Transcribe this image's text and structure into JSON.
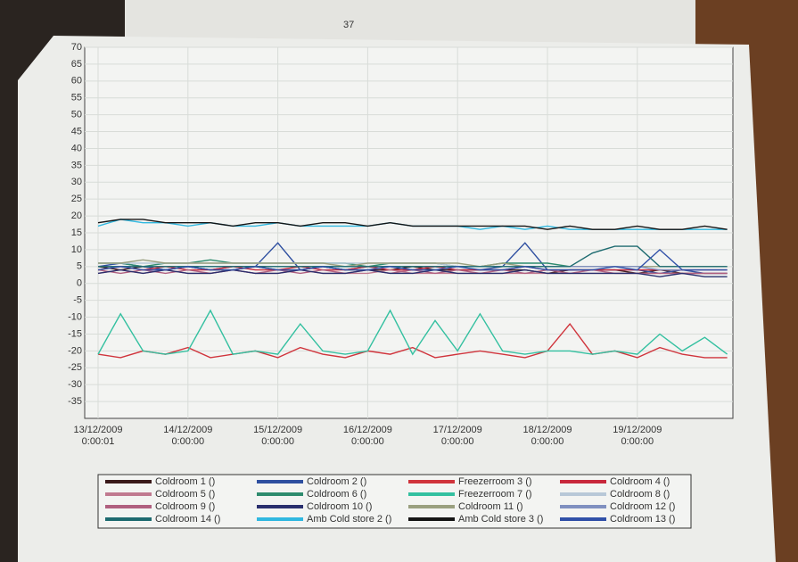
{
  "chart_data": {
    "type": "line",
    "annotation": "37",
    "categories": [
      "13/12/2009 0:00:01",
      null,
      null,
      null,
      "14/12/2009 0:00:00",
      null,
      null,
      null,
      "15/12/2009 0:00:00",
      null,
      null,
      null,
      "16/12/2009 0:00:00",
      null,
      null,
      null,
      "17/12/2009 0:00:00",
      null,
      null,
      null,
      "18/12/2009 0:00:00",
      null,
      null,
      null,
      "19/12/2009 0:00:00",
      null,
      null,
      null,
      null
    ],
    "ylim": [
      -40,
      70
    ],
    "yticks": [
      -35,
      -30,
      -25,
      -20,
      -15,
      -10,
      -5,
      0,
      5,
      10,
      15,
      20,
      25,
      30,
      35,
      40,
      45,
      50,
      55,
      60,
      65,
      70
    ],
    "grid": true,
    "series": [
      {
        "name": "Coldroom 1 ()",
        "color": "#3a1a1a",
        "values": [
          5,
          4,
          5,
          4,
          5,
          4,
          4,
          5,
          4,
          4,
          5,
          4,
          4,
          4,
          5,
          4,
          4,
          4,
          4,
          4,
          3,
          4,
          4,
          4,
          3,
          4,
          3,
          3,
          3
        ]
      },
      {
        "name": "Coldroom 2 ()",
        "color": "#2e4fa0",
        "values": [
          5,
          6,
          5,
          4,
          5,
          4,
          5,
          5,
          12,
          4,
          5,
          4,
          5,
          5,
          4,
          5,
          4,
          4,
          5,
          12,
          4,
          4,
          4,
          4,
          4,
          3,
          4,
          3,
          3
        ]
      },
      {
        "name": "Freezerroom 3 ()",
        "color": "#d0343c",
        "values": [
          -21,
          -22,
          -20,
          -21,
          -19,
          -22,
          -21,
          -20,
          -22,
          -19,
          -21,
          -22,
          -20,
          -21,
          -19,
          -22,
          -21,
          -20,
          -21,
          -22,
          -20,
          -12,
          -21,
          -20,
          -22,
          -19,
          -21,
          -22,
          -22
        ]
      },
      {
        "name": "Coldroom 4 ()",
        "color": "#c8283c",
        "values": [
          4,
          5,
          4,
          5,
          4,
          4,
          5,
          4,
          4,
          5,
          4,
          4,
          5,
          4,
          4,
          5,
          4,
          4,
          4,
          5,
          4,
          4,
          4,
          4,
          4,
          4,
          4,
          4,
          4
        ]
      },
      {
        "name": "Coldroom 5 ()",
        "color": "#c07a90",
        "values": [
          3,
          4,
          3,
          4,
          3,
          3,
          4,
          3,
          3,
          4,
          3,
          3,
          3,
          4,
          3,
          3,
          3,
          3,
          3,
          3,
          3,
          3,
          3,
          3,
          3,
          3,
          3,
          3,
          3
        ]
      },
      {
        "name": "Coldroom 6 ()",
        "color": "#2e8b6e",
        "values": [
          6,
          6,
          5,
          6,
          6,
          7,
          6,
          6,
          6,
          6,
          6,
          6,
          5,
          6,
          6,
          6,
          5,
          5,
          6,
          6,
          6,
          5,
          5,
          5,
          5,
          5,
          5,
          5,
          5
        ]
      },
      {
        "name": "Freezerroom 7 ()",
        "color": "#33c0a0",
        "values": [
          -21,
          -9,
          -20,
          -21,
          -20,
          -8,
          -21,
          -20,
          -21,
          -12,
          -20,
          -21,
          -20,
          -8,
          -21,
          -11,
          -20,
          -9,
          -20,
          -21,
          -20,
          -20,
          -21,
          -20,
          -21,
          -15,
          -20,
          -16,
          -21
        ]
      },
      {
        "name": "Coldroom 8 ()",
        "color": "#b8c8d8",
        "values": [
          6,
          6,
          6,
          6,
          6,
          6,
          6,
          6,
          6,
          6,
          6,
          6,
          6,
          6,
          6,
          6,
          5,
          5,
          5,
          5,
          5,
          5,
          5,
          5,
          5,
          5,
          5,
          5,
          5
        ]
      },
      {
        "name": "Coldroom 9 ()",
        "color": "#b06080",
        "values": [
          4,
          3,
          4,
          3,
          4,
          3,
          4,
          3,
          4,
          3,
          4,
          3,
          4,
          3,
          4,
          3,
          4,
          3,
          4,
          3,
          4,
          3,
          4,
          3,
          3,
          3,
          3,
          3,
          3
        ]
      },
      {
        "name": "Coldroom 10 ()",
        "color": "#2a2f6e",
        "values": [
          3,
          4,
          3,
          4,
          3,
          3,
          4,
          3,
          3,
          4,
          3,
          3,
          4,
          3,
          3,
          4,
          3,
          3,
          3,
          4,
          3,
          3,
          3,
          3,
          3,
          2,
          3,
          2,
          2
        ]
      },
      {
        "name": "Coldroom 11 ()",
        "color": "#9aa080",
        "values": [
          6,
          6,
          7,
          6,
          6,
          6,
          6,
          6,
          6,
          6,
          6,
          5,
          6,
          6,
          6,
          6,
          6,
          5,
          6,
          5,
          5,
          5,
          5,
          5,
          5,
          5,
          5,
          5,
          5
        ]
      },
      {
        "name": "Coldroom 12 ()",
        "color": "#8090c0",
        "values": [
          5,
          5,
          5,
          5,
          5,
          5,
          5,
          5,
          5,
          5,
          5,
          5,
          5,
          5,
          5,
          5,
          5,
          5,
          5,
          5,
          5,
          5,
          5,
          5,
          5,
          4,
          4,
          4,
          4
        ]
      },
      {
        "name": "Coldroom 14 ()",
        "color": "#1e6b70",
        "values": [
          5,
          5,
          5,
          5,
          5,
          5,
          5,
          5,
          5,
          5,
          5,
          5,
          5,
          5,
          5,
          5,
          5,
          5,
          5,
          5,
          5,
          5,
          9,
          11,
          11,
          5,
          5,
          5,
          5
        ]
      },
      {
        "name": "Amb Cold store 2 ()",
        "color": "#30b8e0",
        "values": [
          17,
          19,
          18,
          18,
          17,
          18,
          17,
          17,
          18,
          17,
          17,
          17,
          17,
          18,
          17,
          17,
          17,
          16,
          17,
          16,
          17,
          16,
          16,
          16,
          16,
          16,
          16,
          16,
          16
        ]
      },
      {
        "name": "Amb Cold store 3 ()",
        "color": "#151515",
        "values": [
          18,
          19,
          19,
          18,
          18,
          18,
          17,
          18,
          18,
          17,
          18,
          18,
          17,
          18,
          17,
          17,
          17,
          17,
          17,
          17,
          16,
          17,
          16,
          16,
          17,
          16,
          16,
          17,
          16
        ]
      },
      {
        "name": "Coldroom 13 ()",
        "color": "#3050a8",
        "values": [
          4,
          5,
          4,
          4,
          5,
          4,
          4,
          5,
          4,
          4,
          5,
          4,
          4,
          5,
          4,
          4,
          5,
          4,
          4,
          5,
          4,
          4,
          4,
          5,
          4,
          10,
          4,
          4,
          4
        ]
      }
    ]
  }
}
